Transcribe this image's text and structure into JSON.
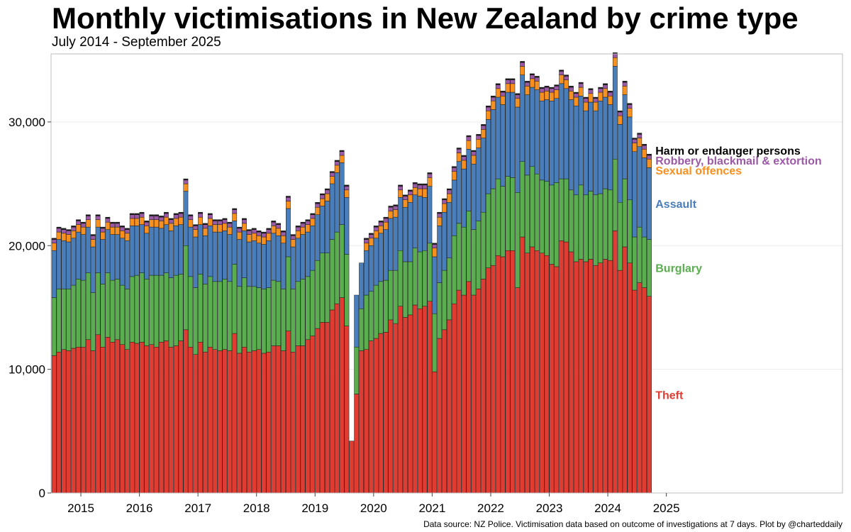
{
  "title": "Monthly victimisations in New Zealand by crime type",
  "subtitle": "July 2014 - September 2025",
  "caption": "Data source: NZ Police. Victimisation data based on outcome of investigations at 7 days. Plot by @charteddaily",
  "chart_data": {
    "type": "bar",
    "stacked": true,
    "title": "Monthly victimisations in New Zealand by crime type",
    "subtitle": "July 2014 - September 2025",
    "xlabel": "",
    "ylabel": "",
    "ylim": [
      0,
      35500
    ],
    "y_ticks": [
      0,
      10000,
      20000,
      30000
    ],
    "y_tick_labels": [
      "0",
      "10,000",
      "20,000",
      "30,000"
    ],
    "x_ticks": [
      "2015",
      "2016",
      "2017",
      "2018",
      "2019",
      "2020",
      "2021",
      "2022",
      "2023",
      "2024",
      "2025"
    ],
    "start_month": "2014-07",
    "end_month": "2025-09",
    "legend": "direct labels at right end of bars",
    "series": [
      {
        "name": "Theft",
        "color": "#e03c31",
        "values": [
          11100,
          11400,
          11600,
          11500,
          11700,
          11800,
          11800,
          12400,
          11500,
          12800,
          11800,
          12600,
          12200,
          12400,
          12000,
          11600,
          12200,
          12100,
          12200,
          11900,
          12000,
          11800,
          12200,
          12300,
          11800,
          11900,
          12300,
          13200,
          11800,
          11200,
          12200,
          11400,
          11800,
          11600,
          11500,
          11600,
          11500,
          12900,
          11300,
          11800,
          11400,
          11500,
          11600,
          11300,
          11400,
          11900,
          11900,
          11500,
          13100,
          11400,
          11900,
          11900,
          12400,
          12700,
          13300,
          13800,
          13800,
          14800,
          15300,
          15800,
          13500,
          4200,
          8000,
          11500,
          11600,
          12300,
          12500,
          12900,
          13000,
          14000,
          13700,
          15100,
          14200,
          14400,
          15200,
          14900,
          15100,
          15500,
          9800,
          12500,
          13200,
          14000,
          15300,
          16400,
          16000,
          17100,
          16000,
          16500,
          17300,
          18200,
          18400,
          19200,
          19100,
          19600,
          19600,
          16600,
          20700,
          19400,
          19900,
          19600,
          19400,
          19200,
          18500,
          18300,
          20400,
          20300,
          19500,
          18700,
          18900,
          18700,
          18900,
          18400,
          18600,
          18900,
          18800,
          21200,
          18000,
          19900,
          18600,
          16400,
          17000,
          16600,
          15900
        ]
      },
      {
        "name": "Burglary",
        "color": "#5aae4f",
        "values": [
          4700,
          5100,
          4900,
          5000,
          5100,
          5500,
          5400,
          5400,
          4700,
          5000,
          5100,
          5200,
          5000,
          4900,
          4800,
          4900,
          5300,
          5500,
          5600,
          5400,
          5600,
          5800,
          5400,
          5500,
          5600,
          5700,
          5400,
          6800,
          5700,
          5400,
          5500,
          5500,
          5700,
          5500,
          5600,
          5700,
          5600,
          5600,
          5400,
          5600,
          5300,
          5200,
          5000,
          5200,
          5200,
          5300,
          5200,
          5000,
          6000,
          5100,
          5200,
          5400,
          5100,
          5300,
          5500,
          5600,
          5600,
          5700,
          5800,
          5900,
          5800,
          0,
          3800,
          3400,
          4400,
          4000,
          4300,
          4200,
          4200,
          4000,
          4300,
          4500,
          4500,
          4300,
          4600,
          4600,
          4500,
          4700,
          4700,
          4500,
          4800,
          5000,
          5500,
          5400,
          5500,
          5700,
          5300,
          5500,
          5400,
          6000,
          6200,
          6200,
          5700,
          6000,
          5900,
          7700,
          6100,
          6300,
          6500,
          6200,
          5900,
          6000,
          6400,
          6800,
          5000,
          5100,
          5000,
          5400,
          6000,
          5400,
          5500,
          5700,
          5600,
          5700,
          5700,
          5800,
          5500,
          5500,
          5100,
          4300,
          4500,
          4100,
          4600
        ]
      },
      {
        "name": "Assault",
        "color": "#4a7ebb",
        "values": [
          3800,
          4000,
          3900,
          3800,
          3800,
          3800,
          3700,
          3700,
          3700,
          3700,
          3600,
          3500,
          3700,
          3600,
          3800,
          3900,
          4100,
          4000,
          3900,
          3700,
          3900,
          3900,
          3800,
          3900,
          3800,
          4000,
          4000,
          4400,
          4000,
          4100,
          4000,
          3900,
          4100,
          4000,
          4000,
          3900,
          3800,
          3500,
          3800,
          3800,
          3600,
          3700,
          3600,
          3600,
          3800,
          3800,
          3700,
          3700,
          3900,
          3400,
          3500,
          3600,
          3600,
          3600,
          3700,
          3800,
          4200,
          4500,
          4800,
          5000,
          4600,
          0,
          4200,
          3700,
          3600,
          3700,
          3800,
          3900,
          4100,
          4200,
          4300,
          4300,
          4400,
          4800,
          4300,
          4500,
          4300,
          4600,
          4600,
          4600,
          4700,
          4500,
          4500,
          5000,
          4700,
          5000,
          5300,
          5900,
          6000,
          6000,
          6400,
          6600,
          6600,
          6800,
          6900,
          6900,
          7000,
          6500,
          6400,
          6800,
          6400,
          6600,
          6800,
          6800,
          7700,
          7300,
          7300,
          7200,
          7200,
          6800,
          7200,
          6800,
          7500,
          7400,
          6900,
          7500,
          6300,
          6800,
          6700,
          6900,
          6500,
          6400,
          5800
        ]
      },
      {
        "name": "Sexual offences",
        "color": "#f7901e",
        "values": [
          600,
          600,
          600,
          600,
          600,
          600,
          600,
          600,
          600,
          600,
          600,
          600,
          600,
          600,
          600,
          600,
          600,
          600,
          600,
          600,
          600,
          600,
          600,
          600,
          600,
          600,
          600,
          600,
          600,
          600,
          600,
          600,
          600,
          600,
          600,
          600,
          600,
          600,
          600,
          600,
          600,
          600,
          600,
          600,
          600,
          600,
          600,
          600,
          600,
          600,
          600,
          600,
          600,
          600,
          600,
          600,
          600,
          600,
          600,
          600,
          600,
          0,
          0,
          0,
          600,
          600,
          600,
          600,
          600,
          600,
          600,
          600,
          600,
          600,
          600,
          600,
          700,
          700,
          700,
          700,
          700,
          700,
          700,
          700,
          700,
          700,
          700,
          700,
          700,
          700,
          700,
          700,
          700,
          700,
          700,
          700,
          700,
          700,
          700,
          700,
          700,
          700,
          700,
          700,
          700,
          700,
          700,
          700,
          700,
          700,
          700,
          700,
          700,
          700,
          700,
          700,
          700,
          700,
          700,
          700,
          700,
          700,
          700
        ]
      },
      {
        "name": "Robbery, blackmail & extortion",
        "color": "#9b59a6",
        "values": [
          300,
          300,
          300,
          300,
          300,
          300,
          300,
          300,
          300,
          300,
          300,
          300,
          300,
          300,
          300,
          300,
          300,
          300,
          300,
          300,
          300,
          300,
          300,
          300,
          300,
          300,
          300,
          300,
          300,
          300,
          300,
          300,
          300,
          300,
          300,
          300,
          300,
          300,
          300,
          300,
          300,
          300,
          300,
          300,
          300,
          300,
          300,
          300,
          300,
          300,
          300,
          300,
          300,
          300,
          300,
          300,
          300,
          300,
          300,
          300,
          300,
          0,
          0,
          0,
          300,
          300,
          300,
          300,
          300,
          300,
          300,
          300,
          300,
          300,
          300,
          300,
          300,
          300,
          300,
          300,
          300,
          300,
          300,
          300,
          300,
          300,
          300,
          300,
          300,
          300,
          300,
          300,
          300,
          300,
          300,
          300,
          300,
          300,
          300,
          300,
          300,
          300,
          300,
          300,
          300,
          300,
          300,
          300,
          300,
          300,
          300,
          300,
          300,
          300,
          300,
          300,
          300,
          300,
          300,
          300,
          300,
          300,
          300
        ]
      },
      {
        "name": "Harm or endanger persons",
        "color": "#1a1a1a",
        "values": [
          100,
          100,
          100,
          100,
          100,
          100,
          100,
          100,
          100,
          100,
          100,
          100,
          100,
          100,
          100,
          100,
          100,
          100,
          100,
          100,
          100,
          100,
          100,
          100,
          100,
          100,
          100,
          100,
          100,
          100,
          100,
          100,
          100,
          100,
          100,
          100,
          100,
          100,
          100,
          100,
          100,
          100,
          100,
          100,
          100,
          100,
          100,
          100,
          100,
          100,
          100,
          100,
          100,
          100,
          100,
          100,
          100,
          100,
          100,
          100,
          100,
          0,
          0,
          0,
          100,
          100,
          100,
          100,
          100,
          100,
          100,
          100,
          100,
          100,
          100,
          100,
          100,
          100,
          100,
          100,
          100,
          100,
          100,
          100,
          100,
          100,
          100,
          100,
          100,
          100,
          100,
          100,
          100,
          100,
          100,
          100,
          100,
          100,
          100,
          100,
          100,
          100,
          100,
          100,
          100,
          100,
          100,
          100,
          100,
          100,
          100,
          100,
          100,
          100,
          100,
          100,
          100,
          100,
          100,
          100,
          100,
          100,
          100
        ]
      }
    ]
  }
}
